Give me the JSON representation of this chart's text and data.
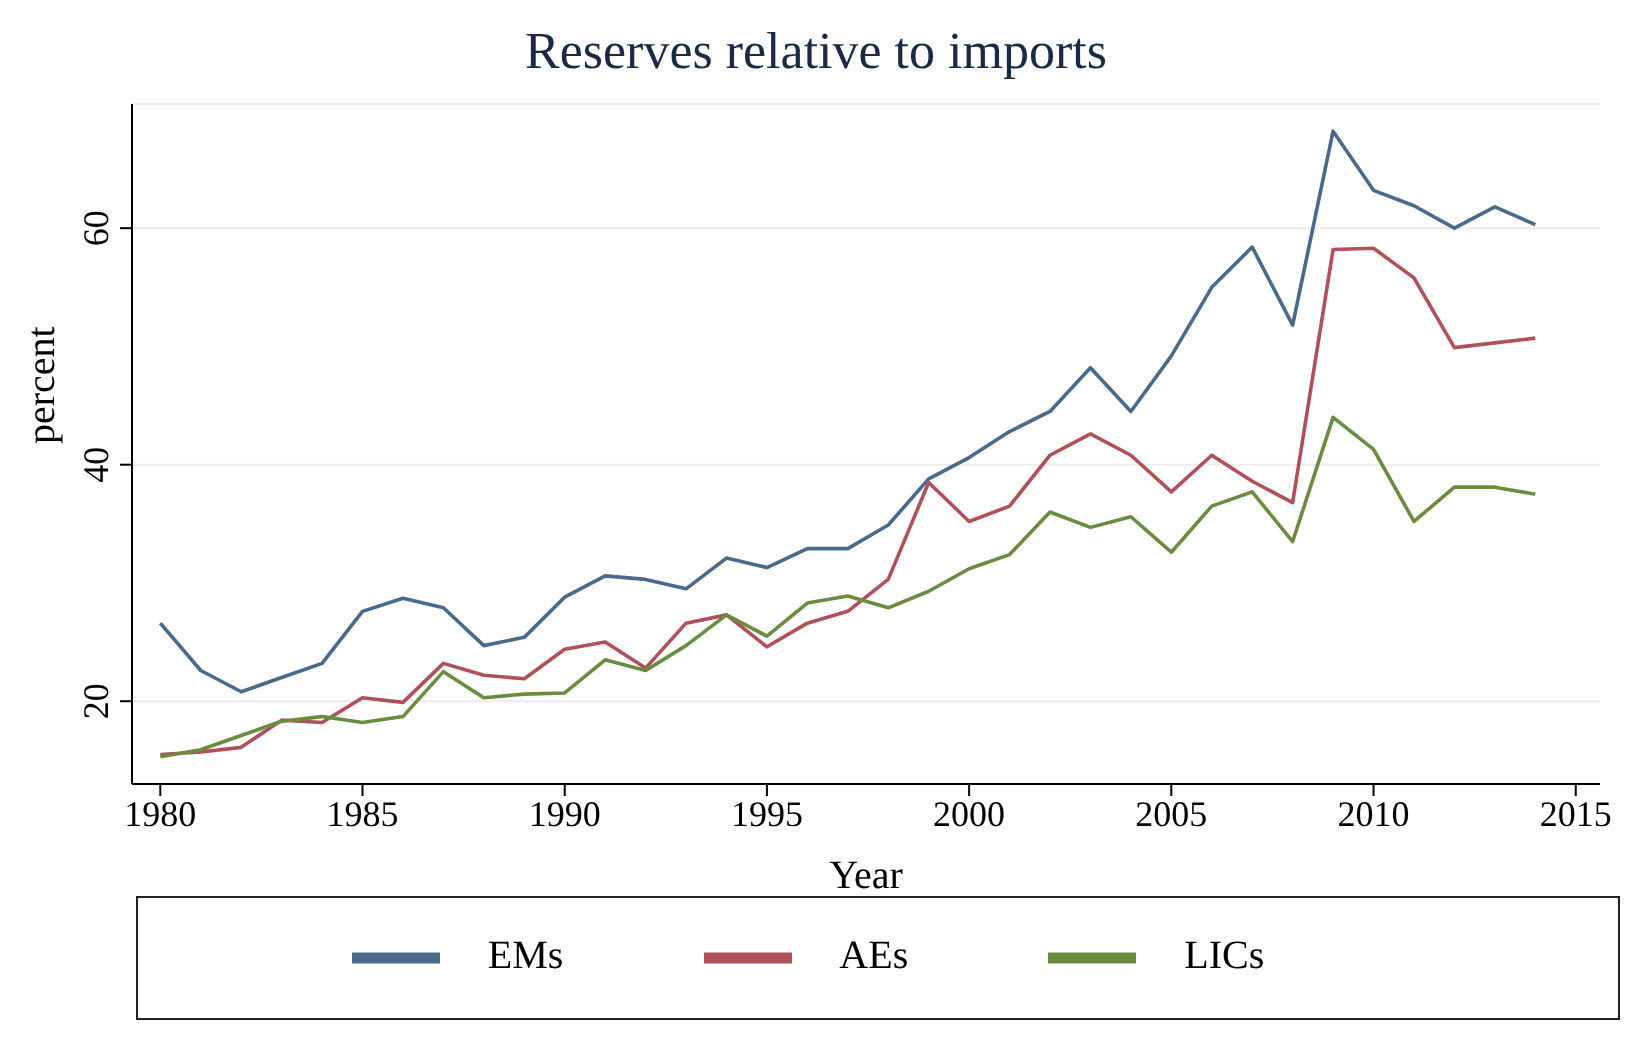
{
  "chart_data": {
    "type": "line",
    "title": "Reserves relative to imports",
    "xlabel": "Year",
    "ylabel": "percent",
    "x": [
      1980,
      1981,
      1982,
      1983,
      1984,
      1985,
      1986,
      1987,
      1988,
      1989,
      1990,
      1991,
      1992,
      1993,
      1994,
      1995,
      1996,
      1997,
      1998,
      1999,
      2000,
      2001,
      2002,
      2003,
      2004,
      2005,
      2006,
      2007,
      2008,
      2009,
      2010,
      2011,
      2012,
      2013,
      2014
    ],
    "series": [
      {
        "name": "EMs",
        "color": "#4a6a8c",
        "values": [
          26.6,
          22.6,
          20.8,
          22.0,
          23.2,
          27.6,
          28.7,
          27.9,
          24.7,
          25.4,
          28.8,
          30.6,
          30.3,
          29.5,
          32.1,
          31.3,
          32.9,
          32.9,
          34.9,
          38.8,
          40.6,
          42.8,
          44.5,
          48.2,
          44.5,
          49.2,
          55.0,
          58.4,
          51.8,
          68.2,
          63.2,
          61.9,
          60.0,
          61.8,
          60.3
        ]
      },
      {
        "name": "AEs",
        "color": "#b0505a",
        "values": [
          15.5,
          15.7,
          16.1,
          18.4,
          18.2,
          20.3,
          19.9,
          23.2,
          22.2,
          21.9,
          24.4,
          25.0,
          22.8,
          26.6,
          27.3,
          24.6,
          26.6,
          27.6,
          30.3,
          38.5,
          35.2,
          36.5,
          40.8,
          42.6,
          40.8,
          37.7,
          40.8,
          38.6,
          36.8,
          58.2,
          58.3,
          55.8,
          49.9,
          50.3,
          50.7
        ]
      },
      {
        "name": "LICs",
        "color": "#6b8c40",
        "values": [
          15.3,
          15.9,
          17.1,
          18.3,
          18.7,
          18.2,
          18.7,
          22.5,
          20.3,
          20.6,
          20.7,
          23.5,
          22.6,
          24.7,
          27.3,
          25.5,
          28.3,
          28.9,
          27.9,
          29.3,
          31.2,
          32.4,
          36.0,
          34.7,
          35.6,
          32.6,
          36.5,
          37.7,
          33.5,
          44.0,
          41.3,
          35.2,
          38.1,
          38.1,
          37.5
        ]
      }
    ],
    "xlim": [
      1979.3,
      2015.6
    ],
    "xticks": [
      1980,
      1985,
      1990,
      1995,
      2000,
      2005,
      2010,
      2015
    ],
    "ylim": [
      13,
      70.5
    ],
    "yticks": [
      20,
      40,
      60
    ],
    "grid": "y",
    "legend": "bottom",
    "marker": "none",
    "line_style": "solid"
  }
}
